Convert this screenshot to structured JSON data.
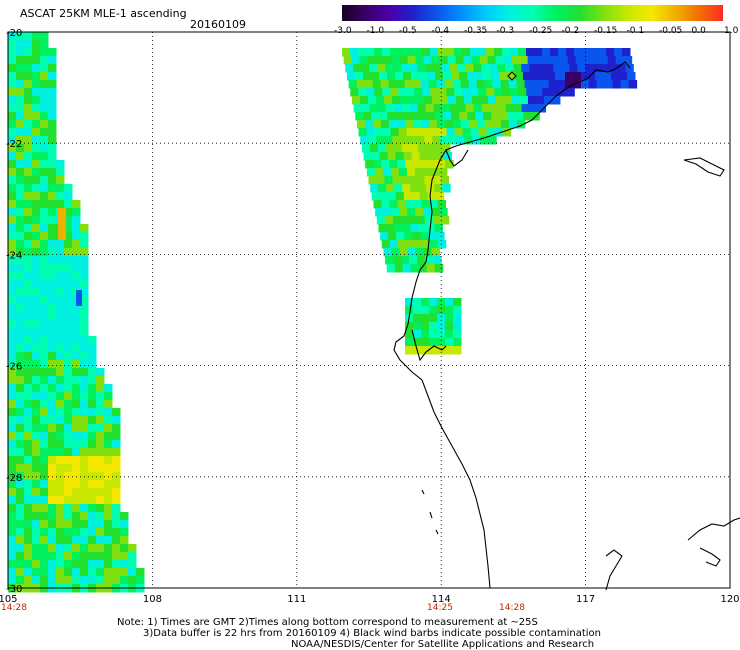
{
  "header": {
    "title": "ASCAT 25KM MLE-1 ascending",
    "date": "20160109"
  },
  "colorbar": {
    "labels": [
      "-3.0",
      "-1.0",
      "-0.5",
      "-0.4",
      "-0.35",
      "-0.3",
      "-0.25",
      "-0.2",
      "-0.15",
      "-0.1",
      "-0.05",
      "0.0",
      "1.0"
    ],
    "colors": [
      "#1a0022",
      "#3a0066",
      "#4b00aa",
      "#1e22cc",
      "#0a55ee",
      "#0090ff",
      "#00c8ff",
      "#00f0e0",
      "#00ffb0",
      "#00f060",
      "#22e030",
      "#80e010",
      "#c8e800",
      "#f4e800",
      "#f0b000",
      "#f07000",
      "#ff2a2a"
    ]
  },
  "axes": {
    "x_labels": [
      "105",
      "108",
      "111",
      "114",
      "117",
      "120"
    ],
    "y_labels": [
      "-20",
      "-22",
      "-24",
      "-26",
      "-28",
      "-30"
    ],
    "lon_range": [
      105,
      120
    ],
    "lat_range": [
      -30,
      -20
    ],
    "grid": true,
    "time_labels": [
      "14:28",
      "14:25",
      "14:28"
    ],
    "time_label_color": "#cc2200"
  },
  "notes": {
    "line1": "Note: 1) Times are GMT 2)Times along bottom correspond to measurement at ~25S",
    "line2": "3)Data buffer is 22 hrs from 20160109 4) Black wind barbs indicate possible contamination",
    "line3": "NOAA/NESDIS/Center for Satellite Applications and Research"
  }
}
